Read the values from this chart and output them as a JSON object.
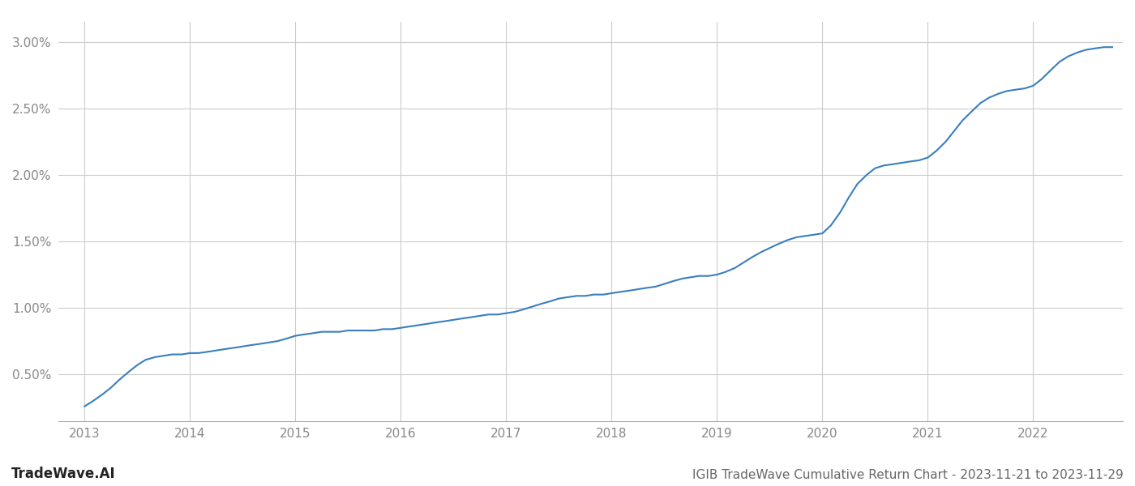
{
  "title": "IGIB TradeWave Cumulative Return Chart - 2023-11-21 to 2023-11-29",
  "watermark": "TradeWave.AI",
  "line_color": "#3a7ebf",
  "background_color": "#ffffff",
  "grid_color": "#cccccc",
  "x_data": [
    2013.0,
    2013.08,
    2013.17,
    2013.25,
    2013.33,
    2013.42,
    2013.5,
    2013.58,
    2013.67,
    2013.75,
    2013.83,
    2013.92,
    2014.0,
    2014.08,
    2014.17,
    2014.25,
    2014.33,
    2014.42,
    2014.5,
    2014.58,
    2014.67,
    2014.75,
    2014.83,
    2014.92,
    2015.0,
    2015.08,
    2015.17,
    2015.25,
    2015.33,
    2015.42,
    2015.5,
    2015.58,
    2015.67,
    2015.75,
    2015.83,
    2015.92,
    2016.0,
    2016.08,
    2016.17,
    2016.25,
    2016.33,
    2016.42,
    2016.5,
    2016.58,
    2016.67,
    2016.75,
    2016.83,
    2016.92,
    2017.0,
    2017.08,
    2017.17,
    2017.25,
    2017.33,
    2017.42,
    2017.5,
    2017.58,
    2017.67,
    2017.75,
    2017.83,
    2017.92,
    2018.0,
    2018.08,
    2018.17,
    2018.25,
    2018.33,
    2018.42,
    2018.5,
    2018.58,
    2018.67,
    2018.75,
    2018.83,
    2018.92,
    2019.0,
    2019.08,
    2019.17,
    2019.25,
    2019.33,
    2019.42,
    2019.5,
    2019.58,
    2019.67,
    2019.75,
    2019.83,
    2019.92,
    2020.0,
    2020.08,
    2020.17,
    2020.25,
    2020.33,
    2020.42,
    2020.5,
    2020.58,
    2020.67,
    2020.75,
    2020.83,
    2020.92,
    2021.0,
    2021.08,
    2021.17,
    2021.25,
    2021.33,
    2021.42,
    2021.5,
    2021.58,
    2021.67,
    2021.75,
    2021.83,
    2021.92,
    2022.0,
    2022.08,
    2022.17,
    2022.25,
    2022.33,
    2022.42,
    2022.5,
    2022.58,
    2022.67,
    2022.75
  ],
  "y_data": [
    0.0026,
    0.003,
    0.0035,
    0.004,
    0.0046,
    0.0052,
    0.0057,
    0.0061,
    0.0063,
    0.0064,
    0.0065,
    0.0065,
    0.0066,
    0.0066,
    0.0067,
    0.0068,
    0.0069,
    0.007,
    0.0071,
    0.0072,
    0.0073,
    0.0074,
    0.0075,
    0.0077,
    0.0079,
    0.008,
    0.0081,
    0.0082,
    0.0082,
    0.0082,
    0.0083,
    0.0083,
    0.0083,
    0.0083,
    0.0084,
    0.0084,
    0.0085,
    0.0086,
    0.0087,
    0.0088,
    0.0089,
    0.009,
    0.0091,
    0.0092,
    0.0093,
    0.0094,
    0.0095,
    0.0095,
    0.0096,
    0.0097,
    0.0099,
    0.0101,
    0.0103,
    0.0105,
    0.0107,
    0.0108,
    0.0109,
    0.0109,
    0.011,
    0.011,
    0.0111,
    0.0112,
    0.0113,
    0.0114,
    0.0115,
    0.0116,
    0.0118,
    0.012,
    0.0122,
    0.0123,
    0.0124,
    0.0124,
    0.0125,
    0.0127,
    0.013,
    0.0134,
    0.0138,
    0.0142,
    0.0145,
    0.0148,
    0.0151,
    0.0153,
    0.0154,
    0.0155,
    0.0156,
    0.0162,
    0.0172,
    0.0183,
    0.0193,
    0.02,
    0.0205,
    0.0207,
    0.0208,
    0.0209,
    0.021,
    0.0211,
    0.0213,
    0.0218,
    0.0225,
    0.0233,
    0.0241,
    0.0248,
    0.0254,
    0.0258,
    0.0261,
    0.0263,
    0.0264,
    0.0265,
    0.0267,
    0.0272,
    0.0279,
    0.0285,
    0.0289,
    0.0292,
    0.0294,
    0.0295,
    0.0296,
    0.0296
  ],
  "ylim": [
    0.0015,
    0.0315
  ],
  "xlim": [
    2012.75,
    2022.85
  ],
  "yticks": [
    0.005,
    0.01,
    0.015,
    0.02,
    0.025,
    0.03
  ],
  "ytick_labels": [
    "0.50%",
    "1.00%",
    "1.50%",
    "2.00%",
    "2.50%",
    "3.00%"
  ],
  "xticks": [
    2013,
    2014,
    2015,
    2016,
    2017,
    2018,
    2019,
    2020,
    2021,
    2022
  ],
  "line_width": 1.5,
  "tick_color": "#888888",
  "title_color": "#666666",
  "watermark_color": "#222222",
  "title_fontsize": 11,
  "tick_fontsize": 11,
  "watermark_fontsize": 12
}
